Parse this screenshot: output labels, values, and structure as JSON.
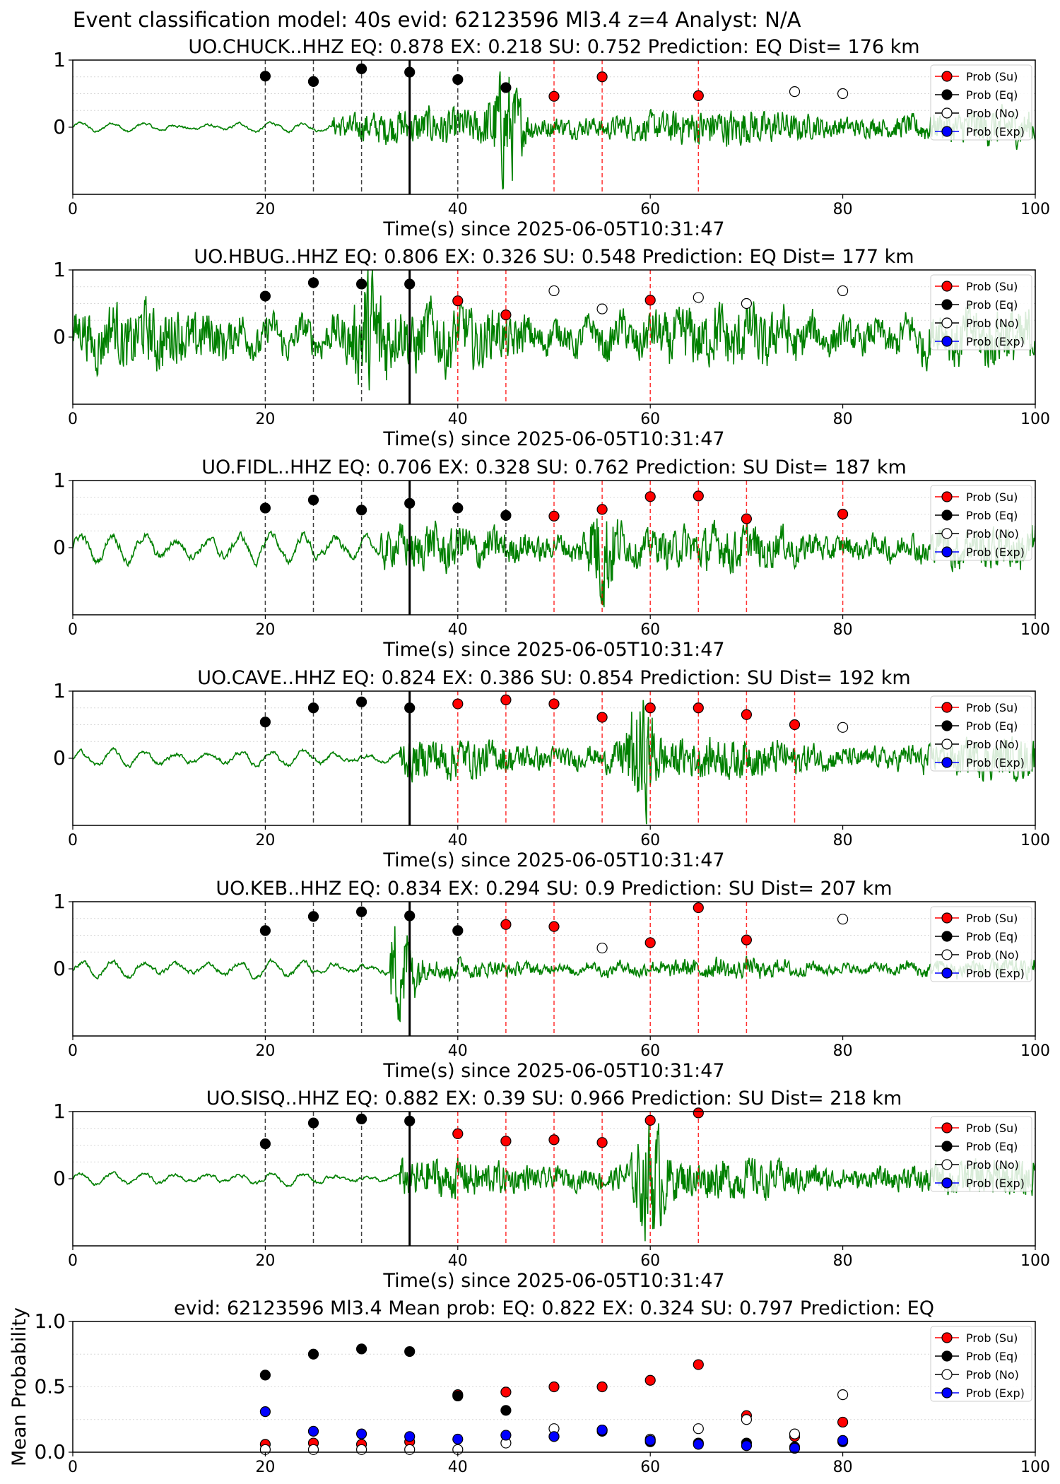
{
  "suptitle": "Event classification model: 40s evid: 62123596 Ml3.4 z=4 Analyst: N/A",
  "colors": {
    "waveform": "#008000",
    "su": "#ff0000",
    "eq": "#000000",
    "no_fill": "#ffffff",
    "exp": "#0000ff",
    "su_line": "#ff0000",
    "eq_line": "#000000",
    "pick_line": "#000000",
    "grid": "#d9d9d9"
  },
  "legend_labels": [
    "Prob (Su)",
    "Prob (Eq)",
    "Prob (No)",
    "Prob (Exp)"
  ],
  "chart_data": [
    {
      "type": "scatter",
      "title": "UO.CHUCK..HHZ   EQ: 0.878  EX: 0.218  SU: 0.752   Prediction: EQ    Dist= 176 km",
      "xlabel": "Time(s) since 2025-06-05T10:31:47",
      "xlim": [
        0,
        100
      ],
      "ylim": [
        -1,
        1
      ],
      "xticks": [
        "0",
        "20",
        "40",
        "60",
        "80",
        "100"
      ],
      "yticks": [
        "0",
        "1"
      ],
      "pick_time": 35,
      "eq_lines": [
        20,
        25,
        30,
        40
      ],
      "su_lines": [
        50,
        55,
        65
      ],
      "waveform": {
        "quiet_end": 27,
        "noise_amp": 0.07,
        "signal_amp": 0.28,
        "burst_center": 45,
        "burst_amp": 0.95
      },
      "series": [
        {
          "name": "Prob (Su)",
          "points": [
            [
              50,
              0.46
            ],
            [
              55,
              0.75
            ],
            [
              65,
              0.47
            ]
          ]
        },
        {
          "name": "Prob (Eq)",
          "points": [
            [
              20,
              0.76
            ],
            [
              25,
              0.68
            ],
            [
              30,
              0.87
            ],
            [
              35,
              0.82
            ],
            [
              40,
              0.71
            ],
            [
              45,
              0.59
            ]
          ]
        },
        {
          "name": "Prob (No)",
          "points": [
            [
              75,
              0.53
            ],
            [
              80,
              0.5
            ]
          ]
        },
        {
          "name": "Prob (Exp)",
          "points": []
        }
      ]
    },
    {
      "type": "scatter",
      "title": "UO.HBUG..HHZ   EQ: 0.806  EX: 0.326  SU: 0.548   Prediction: EQ    Dist= 177 km",
      "xlabel": "Time(s) since 2025-06-05T10:31:47",
      "xlim": [
        0,
        100
      ],
      "ylim": [
        -1,
        1
      ],
      "xticks": [
        "0",
        "20",
        "40",
        "60",
        "80",
        "100"
      ],
      "yticks": [
        "0",
        "1"
      ],
      "pick_time": 35,
      "eq_lines": [
        20,
        25,
        30
      ],
      "su_lines": [
        40,
        45,
        60
      ],
      "waveform": {
        "quiet_end": 0,
        "noise_amp": 0.35,
        "signal_amp": 0.45,
        "burst_center": 31,
        "burst_amp": 0.95
      },
      "series": [
        {
          "name": "Prob (Su)",
          "points": [
            [
              40,
              0.54
            ],
            [
              45,
              0.33
            ],
            [
              60,
              0.55
            ]
          ]
        },
        {
          "name": "Prob (Eq)",
          "points": [
            [
              20,
              0.61
            ],
            [
              25,
              0.81
            ],
            [
              30,
              0.79
            ],
            [
              35,
              0.79
            ]
          ]
        },
        {
          "name": "Prob (No)",
          "points": [
            [
              50,
              0.69
            ],
            [
              55,
              0.42
            ],
            [
              65,
              0.59
            ],
            [
              70,
              0.5
            ],
            [
              80,
              0.69
            ]
          ]
        },
        {
          "name": "Prob (Exp)",
          "points": []
        }
      ]
    },
    {
      "type": "scatter",
      "title": "UO.FIDL..HHZ   EQ: 0.706  EX: 0.328  SU: 0.762   Prediction: SU    Dist= 187 km",
      "xlabel": "Time(s) since 2025-06-05T10:31:47",
      "xlim": [
        0,
        100
      ],
      "ylim": [
        -1,
        1
      ],
      "xticks": [
        "0",
        "20",
        "40",
        "60",
        "80",
        "100"
      ],
      "yticks": [
        "0",
        "1"
      ],
      "pick_time": 35,
      "eq_lines": [
        20,
        25,
        30,
        40,
        45
      ],
      "su_lines": [
        50,
        55,
        60,
        65,
        70,
        80
      ],
      "waveform": {
        "quiet_end": 32,
        "noise_amp": 0.22,
        "signal_amp": 0.32,
        "burst_center": 55,
        "burst_amp": 0.9
      },
      "series": [
        {
          "name": "Prob (Su)",
          "points": [
            [
              50,
              0.47
            ],
            [
              55,
              0.57
            ],
            [
              60,
              0.76
            ],
            [
              65,
              0.77
            ],
            [
              70,
              0.43
            ],
            [
              80,
              0.5
            ]
          ]
        },
        {
          "name": "Prob (Eq)",
          "points": [
            [
              20,
              0.59
            ],
            [
              25,
              0.71
            ],
            [
              30,
              0.56
            ],
            [
              35,
              0.66
            ],
            [
              40,
              0.59
            ],
            [
              45,
              0.48
            ]
          ]
        },
        {
          "name": "Prob (No)",
          "points": []
        },
        {
          "name": "Prob (Exp)",
          "points": []
        }
      ]
    },
    {
      "type": "scatter",
      "title": "UO.CAVE..HHZ   EQ: 0.824  EX: 0.386  SU: 0.854   Prediction: SU    Dist= 192 km",
      "xlabel": "Time(s) since 2025-06-05T10:31:47",
      "xlim": [
        0,
        100
      ],
      "ylim": [
        -1,
        1
      ],
      "xticks": [
        "0",
        "20",
        "40",
        "60",
        "80",
        "100"
      ],
      "yticks": [
        "0",
        "1"
      ],
      "pick_time": 35,
      "eq_lines": [
        20,
        25,
        30
      ],
      "su_lines": [
        40,
        45,
        50,
        55,
        60,
        65,
        70,
        75
      ],
      "waveform": {
        "quiet_end": 34,
        "noise_amp": 0.11,
        "signal_amp": 0.3,
        "burst_center": 59,
        "burst_amp": 0.95
      },
      "series": [
        {
          "name": "Prob (Su)",
          "points": [
            [
              40,
              0.81
            ],
            [
              45,
              0.87
            ],
            [
              50,
              0.81
            ],
            [
              55,
              0.61
            ],
            [
              60,
              0.75
            ],
            [
              65,
              0.75
            ],
            [
              70,
              0.65
            ],
            [
              75,
              0.5
            ]
          ]
        },
        {
          "name": "Prob (Eq)",
          "points": [
            [
              20,
              0.54
            ],
            [
              25,
              0.75
            ],
            [
              30,
              0.84
            ],
            [
              35,
              0.75
            ]
          ]
        },
        {
          "name": "Prob (No)",
          "points": [
            [
              80,
              0.46
            ]
          ]
        },
        {
          "name": "Prob (Exp)",
          "points": []
        }
      ]
    },
    {
      "type": "scatter",
      "title": "UO.KEB..HHZ   EQ: 0.834  EX: 0.294  SU: 0.9   Prediction: SU    Dist= 207 km",
      "xlabel": "Time(s) since 2025-06-05T10:31:47",
      "xlim": [
        0,
        100
      ],
      "ylim": [
        -1,
        1
      ],
      "xticks": [
        "0",
        "20",
        "40",
        "60",
        "80",
        "100"
      ],
      "yticks": [
        "0",
        "1"
      ],
      "pick_time": 35,
      "eq_lines": [
        20,
        25,
        30,
        40
      ],
      "su_lines": [
        45,
        50,
        60,
        65,
        70
      ],
      "waveform": {
        "quiet_end": 33,
        "noise_amp": 0.12,
        "signal_amp": 0.14,
        "burst_center": 34,
        "burst_amp": 0.95
      },
      "series": [
        {
          "name": "Prob (Su)",
          "points": [
            [
              45,
              0.66
            ],
            [
              50,
              0.63
            ],
            [
              60,
              0.39
            ],
            [
              65,
              0.91
            ],
            [
              70,
              0.43
            ]
          ]
        },
        {
          "name": "Prob (Eq)",
          "points": [
            [
              20,
              0.57
            ],
            [
              25,
              0.78
            ],
            [
              30,
              0.85
            ],
            [
              35,
              0.79
            ],
            [
              40,
              0.57
            ]
          ]
        },
        {
          "name": "Prob (No)",
          "points": [
            [
              55,
              0.31
            ],
            [
              80,
              0.74
            ]
          ]
        },
        {
          "name": "Prob (Exp)",
          "points": []
        }
      ]
    },
    {
      "type": "scatter",
      "title": "UO.SISQ..HHZ   EQ: 0.882  EX: 0.39  SU: 0.966   Prediction: SU    Dist= 218 km",
      "xlabel": "Time(s) since 2025-06-05T10:31:47",
      "xlim": [
        0,
        100
      ],
      "ylim": [
        -1,
        1
      ],
      "xticks": [
        "0",
        "20",
        "40",
        "60",
        "80",
        "100"
      ],
      "yticks": [
        "0",
        "1"
      ],
      "pick_time": 35,
      "eq_lines": [
        20,
        25,
        30
      ],
      "su_lines": [
        40,
        45,
        50,
        55,
        60,
        65
      ],
      "waveform": {
        "quiet_end": 34,
        "noise_amp": 0.09,
        "signal_amp": 0.3,
        "burst_center": 60,
        "burst_amp": 0.95
      },
      "series": [
        {
          "name": "Prob (Su)",
          "points": [
            [
              40,
              0.67
            ],
            [
              45,
              0.56
            ],
            [
              50,
              0.58
            ],
            [
              55,
              0.54
            ],
            [
              60,
              0.87
            ],
            [
              65,
              0.98
            ]
          ]
        },
        {
          "name": "Prob (Eq)",
          "points": [
            [
              20,
              0.52
            ],
            [
              25,
              0.83
            ],
            [
              30,
              0.89
            ],
            [
              35,
              0.86
            ]
          ]
        },
        {
          "name": "Prob (No)",
          "points": []
        },
        {
          "name": "Prob (Exp)",
          "points": []
        }
      ]
    },
    {
      "type": "scatter",
      "title": "evid: 62123596  Ml3.4   Mean prob:   EQ: 0.822  EX: 0.324  SU: 0.797   Prediction: EQ",
      "xlabel": "",
      "ylabel": "Mean Probability",
      "xlim": [
        0,
        100
      ],
      "ylim": [
        0,
        1
      ],
      "xticks": [
        "0",
        "20",
        "40",
        "60",
        "80",
        "100"
      ],
      "yticks": [
        "0.0",
        "0.5",
        "1.0"
      ],
      "series": [
        {
          "name": "Prob (Su)",
          "points": [
            [
              20,
              0.06
            ],
            [
              25,
              0.07
            ],
            [
              30,
              0.06
            ],
            [
              35,
              0.08
            ],
            [
              40,
              0.44
            ],
            [
              45,
              0.46
            ],
            [
              50,
              0.5
            ],
            [
              55,
              0.5
            ],
            [
              60,
              0.55
            ],
            [
              65,
              0.67
            ],
            [
              70,
              0.28
            ],
            [
              75,
              0.12
            ],
            [
              80,
              0.23
            ]
          ]
        },
        {
          "name": "Prob (Eq)",
          "points": [
            [
              20,
              0.59
            ],
            [
              25,
              0.75
            ],
            [
              30,
              0.79
            ],
            [
              35,
              0.77
            ],
            [
              40,
              0.43
            ],
            [
              45,
              0.32
            ],
            [
              50,
              0.12
            ],
            [
              55,
              0.16
            ],
            [
              60,
              0.08
            ],
            [
              65,
              0.07
            ],
            [
              70,
              0.07
            ],
            [
              75,
              0.04
            ],
            [
              80,
              0.08
            ]
          ]
        },
        {
          "name": "Prob (No)",
          "points": [
            [
              20,
              0.02
            ],
            [
              25,
              0.02
            ],
            [
              30,
              0.02
            ],
            [
              35,
              0.02
            ],
            [
              40,
              0.02
            ],
            [
              45,
              0.07
            ],
            [
              50,
              0.18
            ],
            [
              55,
              0.17
            ],
            [
              60,
              0.1
            ],
            [
              65,
              0.18
            ],
            [
              70,
              0.25
            ],
            [
              75,
              0.14
            ],
            [
              80,
              0.44
            ]
          ]
        },
        {
          "name": "Prob (Exp)",
          "points": [
            [
              20,
              0.31
            ],
            [
              25,
              0.16
            ],
            [
              30,
              0.14
            ],
            [
              35,
              0.12
            ],
            [
              40,
              0.1
            ],
            [
              45,
              0.13
            ],
            [
              50,
              0.12
            ],
            [
              55,
              0.17
            ],
            [
              60,
              0.09
            ],
            [
              65,
              0.06
            ],
            [
              70,
              0.05
            ],
            [
              75,
              0.03
            ],
            [
              80,
              0.09
            ]
          ]
        }
      ]
    }
  ]
}
